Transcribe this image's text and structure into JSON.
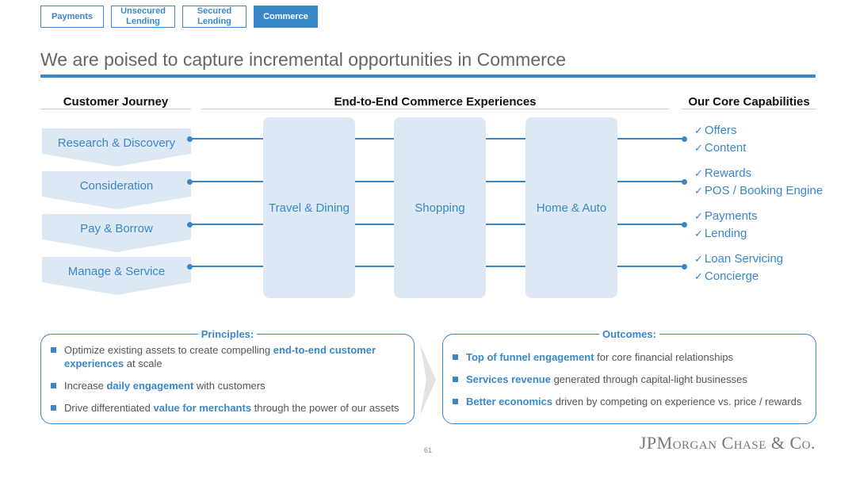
{
  "tabs": [
    {
      "label": "Payments",
      "active": false
    },
    {
      "label": "Unsecured Lending",
      "active": false
    },
    {
      "label": "Secured Lending",
      "active": false
    },
    {
      "label": "Commerce",
      "active": true
    }
  ],
  "title": "We are poised to capture incremental opportunities in Commerce",
  "columns": {
    "journey": "Customer Journey",
    "experiences": "End-to-End Commerce Experiences",
    "capabilities": "Our Core Capabilities"
  },
  "journey_steps": [
    "Research & Discovery",
    "Consideration",
    "Pay & Borrow",
    "Manage & Service"
  ],
  "experiences": [
    "Travel & Dining",
    "Shopping",
    "Home & Auto"
  ],
  "capabilities": [
    "Offers",
    "Content",
    "Rewards",
    "POS / Booking Engine",
    "Payments",
    "Lending",
    "Loan Servicing",
    "Concierge"
  ],
  "check_glyph": "✓",
  "principles": {
    "title": "Principles:",
    "items": [
      {
        "pre": "Optimize existing assets to create compelling ",
        "bold": "end-to-end customer experiences",
        "post": " at scale"
      },
      {
        "pre": "Increase ",
        "bold": "daily engagement",
        "post": " with customers"
      },
      {
        "pre": "Drive differentiated ",
        "bold": "value for merchants",
        "post": " through the power of our assets"
      }
    ]
  },
  "outcomes": {
    "title": "Outcomes:",
    "items": [
      {
        "pre": "",
        "bold": "Top of funnel engagement",
        "post": " for core financial relationships"
      },
      {
        "pre": "",
        "bold": "Services revenue",
        "post": " generated through capital-light businesses"
      },
      {
        "pre": "",
        "bold": "Better economics",
        "post": " driven by competing on experience vs. price / rewards"
      }
    ]
  },
  "page_number": "61",
  "logo": "JPMorgan Chase & Co.",
  "colors": {
    "accent": "#3a87c8",
    "panel": "#dce9f5",
    "chevron": "#dce9f5"
  }
}
